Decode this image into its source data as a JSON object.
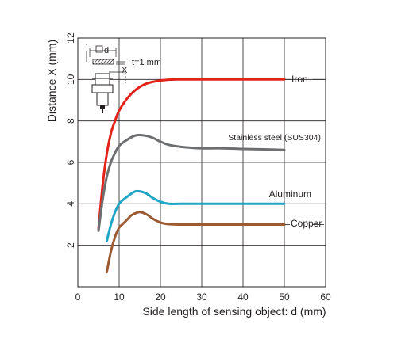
{
  "chart_data": {
    "type": "line",
    "xlabel": "Side length of sensing object: d (mm)",
    "ylabel": "Distance X (mm)",
    "xlim": [
      0,
      60
    ],
    "ylim": [
      0,
      12
    ],
    "x_ticks": [
      0,
      10,
      20,
      30,
      40,
      50,
      60
    ],
    "y_ticks": [
      2,
      4,
      6,
      8,
      10,
      12
    ],
    "grid": true,
    "legend": "inline labels at right ends of curves",
    "inset_labels": {
      "d": "d",
      "x": "X",
      "thickness": "t=1 mm"
    },
    "series": [
      {
        "name": "Iron",
        "color": "#e2231a",
        "x": [
          5,
          6,
          7,
          8,
          9,
          10,
          12,
          14,
          16,
          18,
          20,
          22,
          24,
          26,
          28,
          30,
          35,
          40,
          45,
          50
        ],
        "y": [
          2.8,
          4.9,
          6.4,
          7.4,
          8.0,
          8.5,
          9.1,
          9.5,
          9.75,
          9.88,
          9.95,
          9.99,
          10.0,
          10.0,
          10.0,
          10.0,
          10.0,
          10.0,
          10.0,
          10.0
        ]
      },
      {
        "name": "Stainless steel (SUS304)",
        "color": "#6d6e70",
        "x": [
          5,
          6,
          7,
          8,
          9,
          10,
          12,
          14,
          16,
          18,
          20,
          22,
          25,
          28,
          30,
          35,
          40,
          45,
          50
        ],
        "y": [
          2.7,
          4.2,
          5.3,
          6.0,
          6.45,
          6.8,
          7.1,
          7.3,
          7.3,
          7.2,
          7.0,
          6.85,
          6.75,
          6.7,
          6.68,
          6.68,
          6.65,
          6.63,
          6.6
        ]
      },
      {
        "name": "Aluminum",
        "color": "#1fa6c6",
        "x": [
          7,
          8,
          9,
          10,
          11,
          12,
          13,
          14,
          15,
          16,
          17,
          18,
          20,
          22,
          25,
          30,
          35,
          40,
          45,
          50
        ],
        "y": [
          2.2,
          3.0,
          3.6,
          4.0,
          4.2,
          4.35,
          4.5,
          4.6,
          4.6,
          4.55,
          4.45,
          4.3,
          4.1,
          4.0,
          4.0,
          4.0,
          4.0,
          4.0,
          4.0,
          4.0
        ]
      },
      {
        "name": "Copper",
        "color": "#9c5b33",
        "x": [
          7,
          8,
          9,
          10,
          11,
          12,
          13,
          14,
          15,
          16,
          17,
          18,
          20,
          22,
          25,
          30,
          35,
          40,
          45,
          50
        ],
        "y": [
          0.7,
          1.7,
          2.4,
          2.85,
          3.05,
          3.25,
          3.45,
          3.55,
          3.6,
          3.55,
          3.45,
          3.3,
          3.1,
          3.02,
          3.0,
          3.0,
          3.0,
          3.0,
          3.0,
          3.0
        ]
      }
    ]
  }
}
